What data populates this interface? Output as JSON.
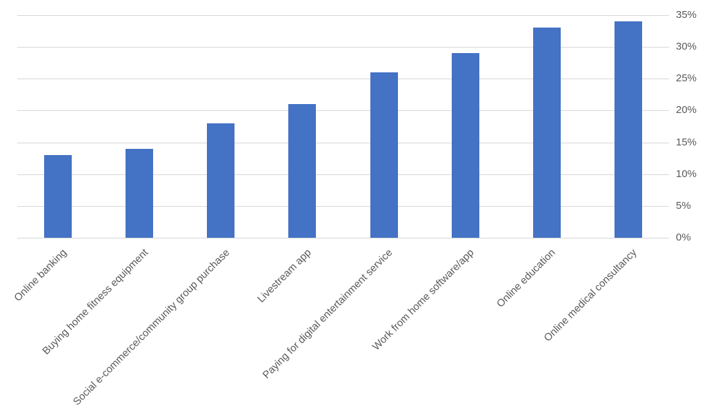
{
  "chart_data": {
    "type": "bar",
    "title": "",
    "xlabel": "",
    "ylabel": "",
    "categories": [
      "Online banking",
      "Buying home fitness equipment",
      "Social e-commerce/community group purchase",
      "Livestream app",
      "Paying for digital entertainment service",
      "Work from home software/app",
      "Online education",
      "Online medical consultancy"
    ],
    "values": [
      13,
      14,
      18,
      21,
      26,
      29,
      33,
      34
    ],
    "value_unit": "%",
    "ylim": [
      0,
      35
    ],
    "ytick_step": 5,
    "ytick_labels": [
      "0%",
      "5%",
      "10%",
      "15%",
      "20%",
      "25%",
      "30%",
      "35%"
    ],
    "y_axis_side": "right",
    "grid": "horizontal",
    "legend": "none",
    "colors": {
      "bar": "#4472C4",
      "gridline": "#D6D6D6",
      "tick_text": "#595959",
      "background": "#FFFFFF"
    }
  }
}
